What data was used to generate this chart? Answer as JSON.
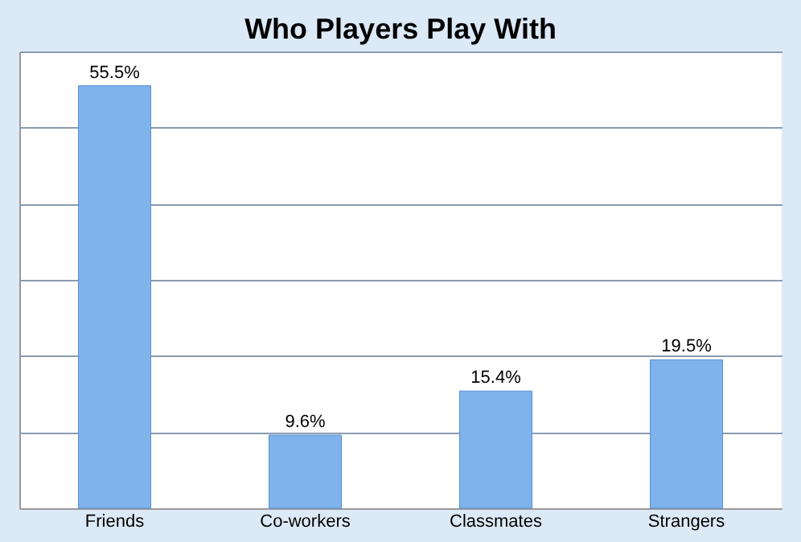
{
  "chart_data": {
    "type": "bar",
    "title": "Who Players Play With",
    "categories": [
      "Friends",
      "Co-workers",
      "Classmates",
      "Strangers"
    ],
    "values": [
      55.5,
      9.6,
      15.4,
      19.5
    ],
    "value_labels": [
      "55.5%",
      "9.6%",
      "15.4%",
      "19.5%"
    ],
    "color": "#7fb3ec",
    "ylim": [
      0,
      60
    ],
    "yticks": [
      0,
      10,
      20,
      30,
      40,
      50,
      60
    ],
    "grid": "y",
    "tick_labels": "x"
  }
}
